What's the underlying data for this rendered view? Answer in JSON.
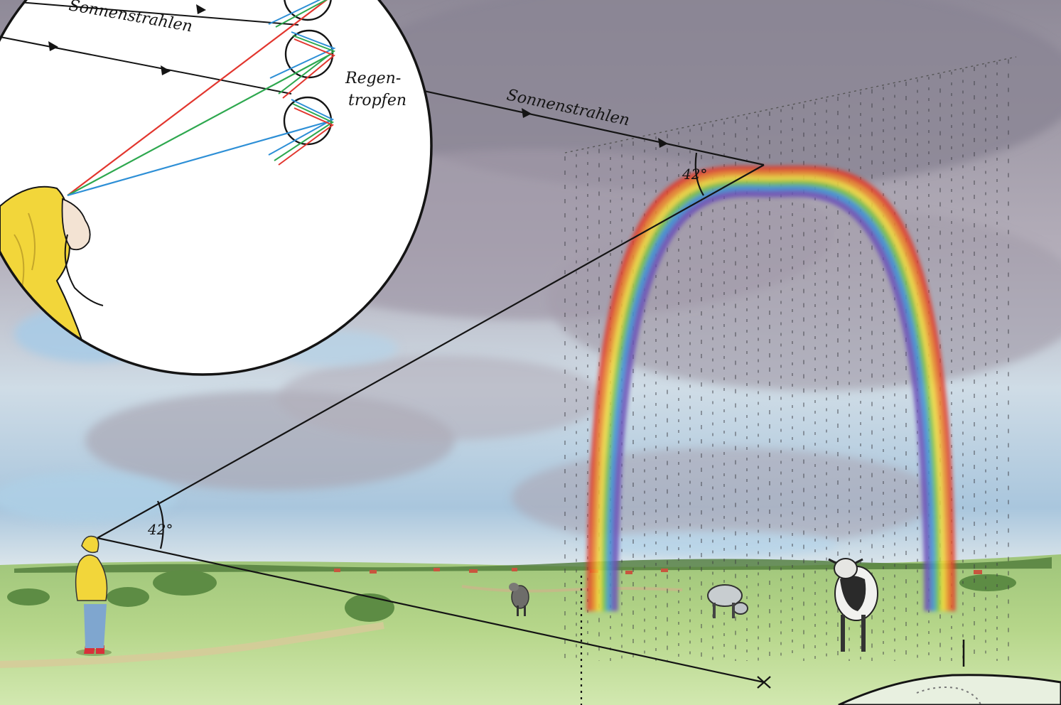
{
  "labels": {
    "rays_inset": "Sonnenstrahlen",
    "rays_main": "Sonnenstrahlen",
    "drops_line1": "Regen-",
    "drops_line2": "tropfen",
    "angle_rainbow": "42°",
    "angle_observer": "42°"
  },
  "colors": {
    "red_ray": "#e2362e",
    "green_ray": "#2ea84f",
    "blue_ray": "#2d8fd6",
    "raincoat": "#f2d63a",
    "line": "#141414",
    "meadow": "#a9cf78",
    "sky_top": "#8e8896"
  },
  "rainbow_bands": [
    "#e23a2c",
    "#f08a2a",
    "#f4dd3a",
    "#6fc24a",
    "#3a8fd8",
    "#6a4fb8"
  ]
}
